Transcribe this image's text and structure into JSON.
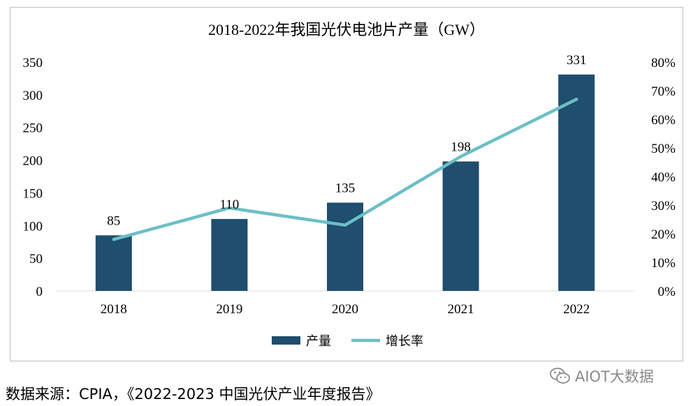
{
  "chart_data": {
    "type": "bar",
    "title": "2018-2022年我国光伏电池片产量（GW）",
    "categories": [
      "2018",
      "2019",
      "2020",
      "2021",
      "2022"
    ],
    "series": [
      {
        "name": "产量",
        "kind": "bar",
        "axis": "left",
        "color": "#1f4e6e",
        "values": [
          85,
          110,
          135,
          198,
          331
        ],
        "labels": [
          "85",
          "110",
          "135",
          "198",
          "331"
        ]
      },
      {
        "name": "增长率",
        "kind": "line",
        "axis": "right",
        "color": "#6bbfc6",
        "values": [
          0.18,
          0.29,
          0.23,
          0.47,
          0.67
        ]
      }
    ],
    "y_left": {
      "min": 0,
      "max": 350,
      "ticks": [
        "0",
        "50",
        "100",
        "150",
        "200",
        "250",
        "300",
        "350"
      ]
    },
    "y_right": {
      "min": 0,
      "max": 0.8,
      "ticks": [
        "0%",
        "10%",
        "20%",
        "30%",
        "40%",
        "50%",
        "60%",
        "70%",
        "80%"
      ]
    },
    "grid": false,
    "legend_position": "bottom"
  },
  "source": "数据来源：CPIA，《2022-2023 中国光伏产业年度报告》",
  "watermark": {
    "text": "AIOT大数据",
    "icon": "wechat-icon"
  }
}
